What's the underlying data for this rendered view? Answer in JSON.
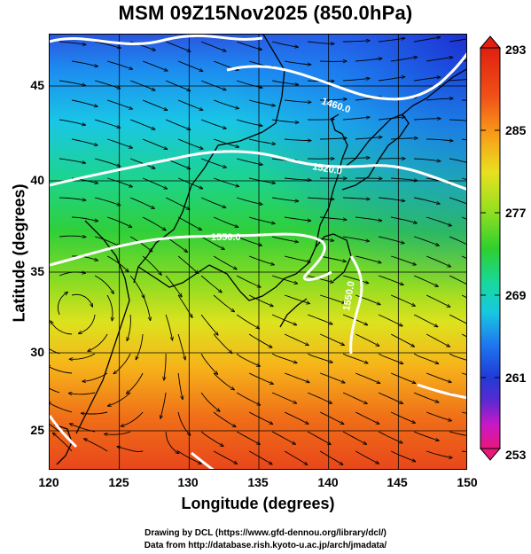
{
  "title": "MSM 09Z15Nov2025 (850.0hPa)",
  "axes": {
    "xlabel": "Longitude (degrees)",
    "ylabel": "Latitude  (degrees)",
    "x_ticks": [
      "120",
      "125",
      "130",
      "135",
      "140",
      "145",
      "150"
    ],
    "y_ticks": [
      "45",
      "40",
      "35",
      "30",
      "25"
    ],
    "xlim": [
      120,
      150
    ],
    "ylim": [
      22.4,
      47.6
    ]
  },
  "colorbar": {
    "ticks": [
      "293",
      "285",
      "277",
      "269",
      "261",
      "253"
    ],
    "range": [
      253,
      293
    ],
    "unit_hint": "temperature (K)",
    "colors": [
      "#e8187a",
      "#c818c8",
      "#5a2ad0",
      "#1f3cd8",
      "#1e78f0",
      "#18c8e0",
      "#18d8a0",
      "#2ed02e",
      "#9ae020",
      "#e8e020",
      "#f8a018",
      "#f05018",
      "#e02010"
    ]
  },
  "contours": {
    "labels": [
      "1460.0",
      "1520.0",
      "1550.0",
      "1550.0"
    ]
  },
  "credits": {
    "line1": "Drawing by DCL (https://www.gfd-dennou.org/library/dcl/)",
    "line2": "Data from http://database.rish.kyoto-u.ac.jp/arch/jmadata/"
  }
}
